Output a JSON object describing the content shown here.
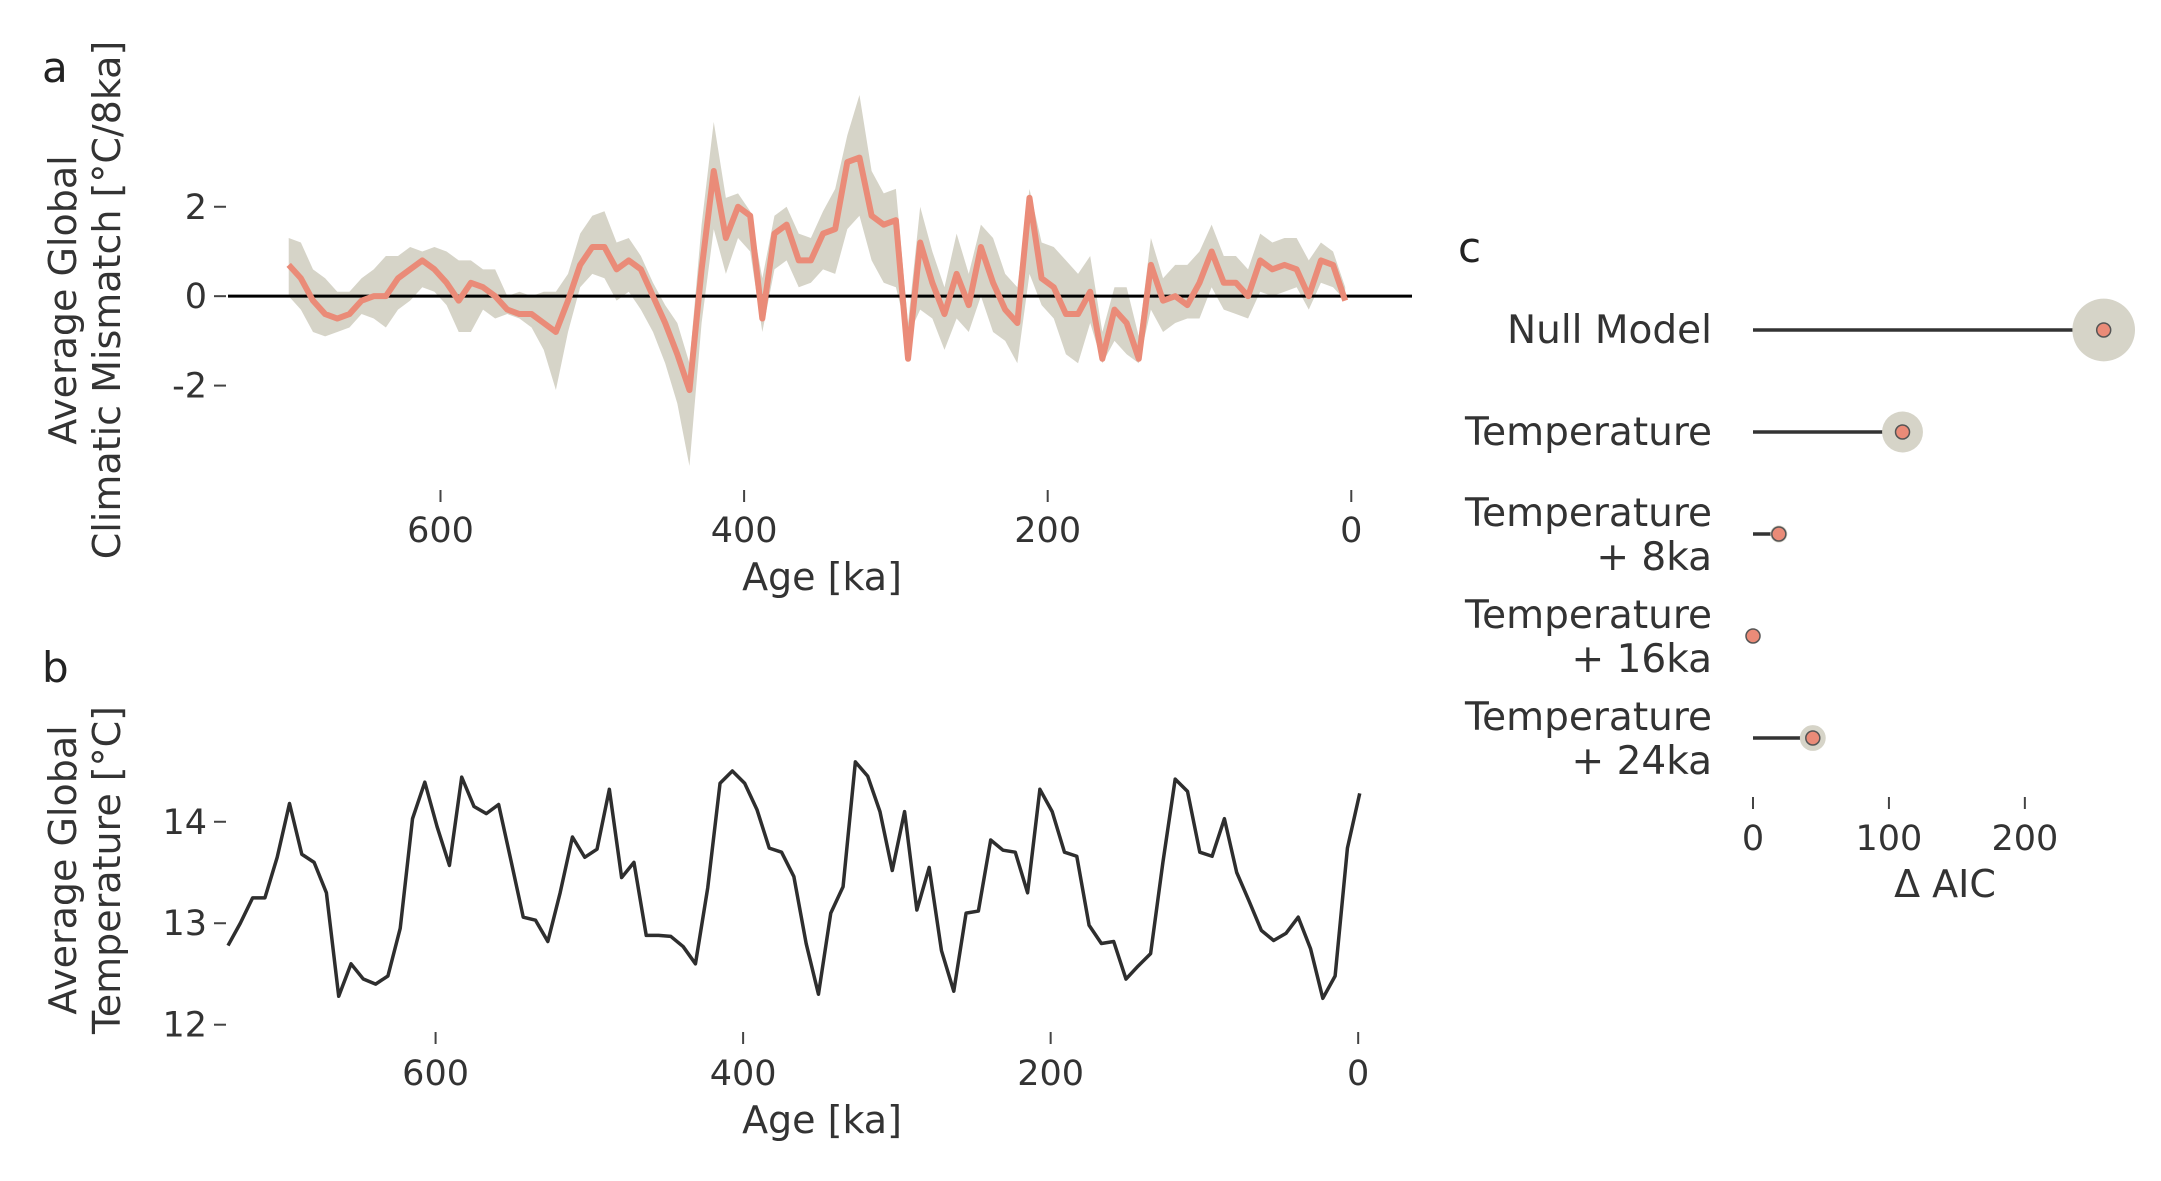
{
  "chart_data": [
    {
      "panel_label": "a",
      "type": "line",
      "ylabel": "Average Global\nClimatic Mismatch [°C/8ka]",
      "xlabel": "Age [ka]",
      "xlim": [
        740,
        -40
      ],
      "ylim": [
        -4,
        4.5
      ],
      "xticks": [
        600,
        400,
        200,
        0
      ],
      "yticks": [
        2,
        0,
        -2
      ],
      "ytick_labels": [
        "2",
        "0",
        "-2"
      ],
      "reference_line": 0,
      "colors": {
        "line": "#ea8b78",
        "band": "#d6d4c8",
        "zero": "#000000"
      },
      "series": {
        "x": [
          700,
          692,
          684,
          676,
          668,
          660,
          652,
          644,
          636,
          628,
          620,
          612,
          604,
          596,
          588,
          580,
          572,
          564,
          556,
          548,
          540,
          532,
          524,
          516,
          508,
          500,
          492,
          484,
          476,
          468,
          460,
          452,
          444,
          436,
          428,
          420,
          412,
          404,
          396,
          388,
          380,
          372,
          364,
          356,
          348,
          340,
          332,
          324,
          316,
          308,
          300,
          292,
          284,
          276,
          268,
          260,
          252,
          244,
          236,
          228,
          220,
          212,
          204,
          196,
          188,
          180,
          172,
          164,
          156,
          148,
          140,
          132,
          124,
          116,
          108,
          100,
          92,
          84,
          76,
          68,
          60,
          52,
          44,
          36,
          28,
          20,
          12,
          4
        ],
        "y": [
          0.7,
          0.4,
          -0.1,
          -0.4,
          -0.5,
          -0.4,
          -0.1,
          0.0,
          0.0,
          0.4,
          0.6,
          0.8,
          0.6,
          0.3,
          -0.1,
          0.3,
          0.2,
          0.0,
          -0.3,
          -0.4,
          -0.4,
          -0.6,
          -0.8,
          -0.1,
          0.7,
          1.1,
          1.1,
          0.6,
          0.8,
          0.6,
          0.0,
          -0.6,
          -1.3,
          -2.1,
          0.6,
          2.8,
          1.3,
          2.0,
          1.8,
          -0.5,
          1.4,
          1.6,
          0.8,
          0.8,
          1.4,
          1.5,
          3.0,
          3.1,
          1.8,
          1.6,
          1.7,
          -1.4,
          1.2,
          0.3,
          -0.4,
          0.5,
          -0.2,
          1.1,
          0.3,
          -0.3,
          -0.6,
          2.2,
          0.4,
          0.2,
          -0.4,
          -0.4,
          0.1,
          -1.4,
          -0.3,
          -0.6,
          -1.4,
          0.7,
          -0.1,
          0.0,
          -0.2,
          0.3,
          1.0,
          0.3,
          0.3,
          0.0,
          0.8,
          0.6,
          0.7,
          0.6,
          0.0,
          0.8,
          0.7,
          -0.1
        ],
        "lower": [
          0.0,
          -0.3,
          -0.8,
          -0.9,
          -0.8,
          -0.7,
          -0.4,
          -0.5,
          -0.7,
          -0.3,
          -0.1,
          0.2,
          0.1,
          -0.2,
          -0.8,
          -0.8,
          -0.3,
          -0.5,
          -0.4,
          -0.5,
          -0.7,
          -1.2,
          -2.1,
          -0.8,
          0.2,
          0.5,
          0.4,
          -0.1,
          0.1,
          -0.3,
          -0.8,
          -1.5,
          -2.4,
          -3.8,
          -0.6,
          1.5,
          0.5,
          1.3,
          1.0,
          -0.8,
          0.6,
          0.8,
          0.2,
          0.3,
          0.6,
          0.5,
          1.5,
          1.8,
          0.8,
          0.3,
          0.2,
          -0.9,
          -0.3,
          -0.5,
          -1.2,
          -0.5,
          -0.8,
          0.0,
          -0.8,
          -1.0,
          -1.5,
          0.5,
          -0.2,
          -0.5,
          -1.3,
          -1.5,
          -0.6,
          -1.5,
          -1.0,
          -1.3,
          -1.5,
          -0.3,
          -0.8,
          -0.6,
          -0.5,
          -0.5,
          0.2,
          -0.3,
          -0.4,
          -0.5,
          0.1,
          0.0,
          0.1,
          0.2,
          -0.3,
          0.3,
          0.2,
          -0.1
        ],
        "upper": [
          1.3,
          1.2,
          0.6,
          0.4,
          0.1,
          0.1,
          0.4,
          0.6,
          0.9,
          0.9,
          1.1,
          1.0,
          1.1,
          1.0,
          0.8,
          0.8,
          0.6,
          0.6,
          0.0,
          0.1,
          0.0,
          0.1,
          0.1,
          0.5,
          1.4,
          1.8,
          1.9,
          1.2,
          1.3,
          0.9,
          0.3,
          -0.2,
          -0.6,
          -1.5,
          1.6,
          3.9,
          2.2,
          2.3,
          1.9,
          0.4,
          1.8,
          2.0,
          1.4,
          1.3,
          1.9,
          2.4,
          3.6,
          4.5,
          2.8,
          2.3,
          2.4,
          -0.6,
          2.0,
          1.0,
          0.2,
          1.4,
          0.5,
          1.6,
          1.3,
          0.5,
          0.2,
          2.4,
          1.2,
          1.1,
          0.8,
          0.5,
          0.9,
          -0.8,
          0.2,
          0.2,
          -0.9,
          1.3,
          0.4,
          0.7,
          0.7,
          1.0,
          1.6,
          0.9,
          0.9,
          0.6,
          1.4,
          1.2,
          1.3,
          1.3,
          0.8,
          1.2,
          1.0,
          0.2
        ]
      }
    },
    {
      "panel_label": "b",
      "type": "line",
      "ylabel": "Average Global\nTemperature [°C]",
      "xlabel": "Age [ka]",
      "xlim": [
        735,
        -35
      ],
      "ylim": [
        11.8,
        15.2
      ],
      "xticks": [
        600,
        400,
        200,
        0
      ],
      "yticks": [
        14,
        13,
        12
      ],
      "colors": {
        "line": "#2e2e2e"
      },
      "series": {
        "x": [
          735,
          727,
          719,
          711,
          703,
          695,
          687,
          679,
          671,
          663,
          655,
          647,
          639,
          631,
          623,
          615,
          607,
          599,
          591,
          583,
          575,
          567,
          559,
          551,
          543,
          535,
          527,
          519,
          511,
          503,
          495,
          487,
          479,
          471,
          463,
          455,
          447,
          439,
          431,
          423,
          415,
          407,
          399,
          391,
          383,
          375,
          367,
          359,
          351,
          343,
          335,
          327,
          319,
          311,
          303,
          295,
          287,
          279,
          271,
          263,
          255,
          247,
          239,
          231,
          223,
          215,
          207,
          199,
          191,
          183,
          175,
          167,
          159,
          151,
          143,
          135,
          127,
          119,
          111,
          103,
          95,
          87,
          79,
          71,
          63,
          55,
          47,
          39,
          31,
          23,
          15,
          7,
          -1
        ],
        "y": [
          12.78,
          13.0,
          13.25,
          13.25,
          13.65,
          14.18,
          13.68,
          13.6,
          13.3,
          12.28,
          12.6,
          12.45,
          12.4,
          12.48,
          12.95,
          14.03,
          14.39,
          13.95,
          13.57,
          14.44,
          14.15,
          14.08,
          14.17,
          13.62,
          13.06,
          13.03,
          12.82,
          13.3,
          13.85,
          13.65,
          13.73,
          14.32,
          13.45,
          13.6,
          12.88,
          12.88,
          12.87,
          12.77,
          12.6,
          13.35,
          14.38,
          14.5,
          14.38,
          14.12,
          13.74,
          13.7,
          13.46,
          12.8,
          12.3,
          13.1,
          13.36,
          14.59,
          14.45,
          14.1,
          13.52,
          14.1,
          13.13,
          13.55,
          12.73,
          12.33,
          13.1,
          13.12,
          13.82,
          13.72,
          13.7,
          13.3,
          14.32,
          14.1,
          13.7,
          13.66,
          12.98,
          12.8,
          12.82,
          12.45,
          12.58,
          12.7,
          13.6,
          14.42,
          14.3,
          13.7,
          13.66,
          14.03,
          13.5,
          13.22,
          12.93,
          12.83,
          12.9,
          13.06,
          12.75,
          12.26,
          12.48,
          13.74,
          14.28
        ]
      }
    },
    {
      "panel_label": "c",
      "type": "scatter",
      "xlabel": "Δ  AIC",
      "xlim": [
        0,
        270
      ],
      "xticks": [
        0,
        100,
        200
      ],
      "colors": {
        "stem": "#333333",
        "halo": "#d6d4c8",
        "dot": "#ea8b78"
      },
      "categories": [
        "Null Model",
        "Temperature",
        "Temperature\n+ 8ka",
        "Temperature\n+ 16ka",
        "Temperature\n+ 24ka"
      ],
      "values": [
        258,
        110,
        19,
        0,
        44
      ]
    }
  ]
}
